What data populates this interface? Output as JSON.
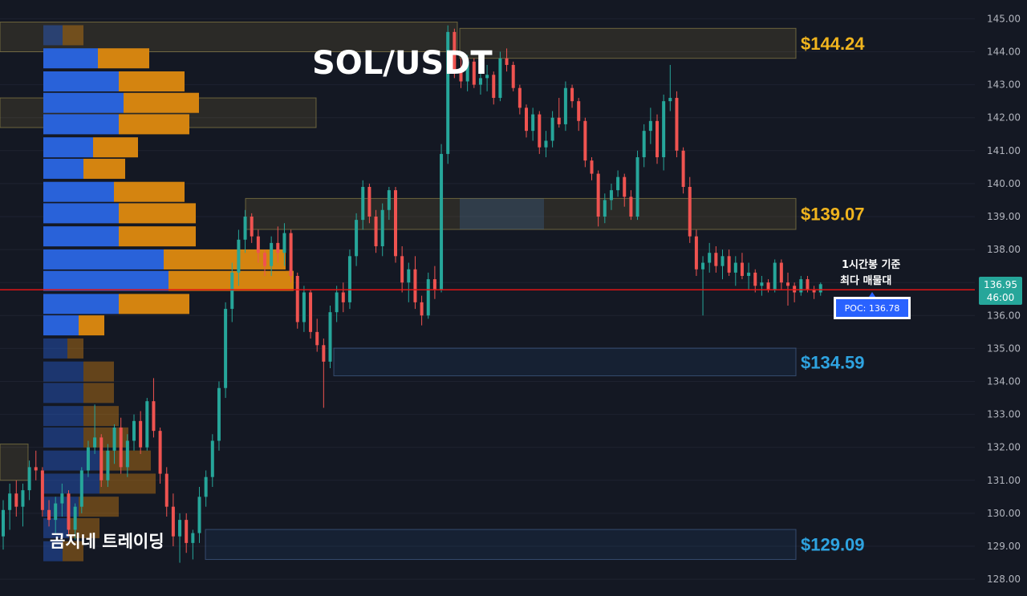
{
  "chart_data": {
    "type": "candlestick",
    "title": "SOL/USDT",
    "brand": "곰지네 트레이딩",
    "y_axis": {
      "ylim": [
        127.6,
        145.4
      ],
      "ticks": [
        "145.00",
        "144.00",
        "143.00",
        "142.00",
        "141.00",
        "140.00",
        "139.00",
        "138.00",
        "137.00",
        "136.00",
        "135.00",
        "134.00",
        "133.00",
        "132.00",
        "131.00",
        "130.00",
        "129.00",
        "128.00"
      ]
    },
    "last_price": {
      "value": "136.95",
      "countdown": "46:00",
      "color": "#26a69a"
    },
    "poc": {
      "label": "POC: 136.78",
      "value": 136.78,
      "line_color": "#e01515",
      "annotation": [
        "1시간봉 기준",
        "최다 매물대"
      ]
    },
    "levels": [
      {
        "label": "$144.24",
        "top": 144.71,
        "bottom": 143.8,
        "color": "#f0b41e"
      },
      {
        "label": "$139.07",
        "top": 139.55,
        "bottom": 138.61,
        "color": "#f0b41e"
      },
      {
        "label": "$134.59",
        "top": 135.01,
        "bottom": 134.17,
        "color": "#2ea3e0"
      },
      {
        "label": "$129.09",
        "top": 129.51,
        "bottom": 128.6,
        "color": "#2ea3e0"
      }
    ],
    "colors": {
      "up": "#26a69a",
      "down": "#ef5350",
      "buy_volume": "#2962d9",
      "sell_volume": "#d48410"
    },
    "volume_profile": [
      {
        "price": 144.5,
        "buy": 12,
        "sell": 13,
        "faded": true
      },
      {
        "price": 143.8,
        "buy": 34,
        "sell": 32
      },
      {
        "price": 143.1,
        "buy": 47,
        "sell": 41
      },
      {
        "price": 142.45,
        "buy": 50,
        "sell": 47
      },
      {
        "price": 141.8,
        "buy": 47,
        "sell": 44
      },
      {
        "price": 141.1,
        "buy": 31,
        "sell": 28
      },
      {
        "price": 140.45,
        "buy": 25,
        "sell": 26
      },
      {
        "price": 139.75,
        "buy": 44,
        "sell": 44
      },
      {
        "price": 139.1,
        "buy": 47,
        "sell": 48
      },
      {
        "price": 138.4,
        "buy": 47,
        "sell": 48
      },
      {
        "price": 137.7,
        "buy": 75,
        "sell": 76
      },
      {
        "price": 137.05,
        "buy": 78,
        "sell": 78
      },
      {
        "price": 136.35,
        "buy": 47,
        "sell": 44
      },
      {
        "price": 135.7,
        "buy": 22,
        "sell": 16
      },
      {
        "price": 135.0,
        "buy": 15,
        "sell": 10,
        "faded": true
      },
      {
        "price": 134.3,
        "buy": 25,
        "sell": 19,
        "faded": true
      },
      {
        "price": 133.65,
        "buy": 25,
        "sell": 19,
        "faded": true
      },
      {
        "price": 132.95,
        "buy": 25,
        "sell": 22,
        "faded": true
      },
      {
        "price": 132.3,
        "buy": 25,
        "sell": 28,
        "faded": true
      },
      {
        "price": 131.6,
        "buy": 35,
        "sell": 32,
        "faded": true
      },
      {
        "price": 130.9,
        "buy": 35,
        "sell": 35,
        "faded": true
      },
      {
        "price": 130.2,
        "buy": 22,
        "sell": 25,
        "faded": true
      },
      {
        "price": 129.55,
        "buy": 16,
        "sell": 19,
        "faded": true
      },
      {
        "price": 128.85,
        "buy": 12,
        "sell": 13,
        "faded": true
      }
    ],
    "ohlc": [
      [
        129.3,
        130.4,
        128.9,
        130.1
      ],
      [
        130.1,
        130.9,
        129.5,
        130.6
      ],
      [
        130.6,
        131.0,
        129.9,
        130.2
      ],
      [
        130.2,
        130.9,
        129.6,
        130.7
      ],
      [
        130.7,
        131.6,
        130.4,
        131.4
      ],
      [
        131.4,
        131.9,
        131.0,
        131.3
      ],
      [
        131.3,
        131.4,
        129.9,
        130.1
      ],
      [
        130.1,
        130.4,
        129.6,
        129.8
      ],
      [
        129.8,
        130.5,
        129.4,
        130.3
      ],
      [
        130.3,
        130.9,
        129.9,
        130.6
      ],
      [
        130.6,
        130.7,
        129.3,
        129.5
      ],
      [
        129.5,
        130.3,
        129.2,
        130.2
      ],
      [
        130.2,
        131.4,
        130.0,
        131.3
      ],
      [
        131.3,
        132.2,
        131.1,
        132.0
      ],
      [
        132.0,
        133.3,
        131.8,
        132.3
      ],
      [
        132.3,
        132.4,
        130.8,
        131.0
      ],
      [
        131.0,
        132.1,
        130.8,
        131.9
      ],
      [
        131.9,
        132.7,
        131.5,
        132.6
      ],
      [
        132.6,
        132.9,
        131.2,
        131.4
      ],
      [
        131.4,
        132.4,
        131.1,
        132.2
      ],
      [
        132.2,
        133.0,
        131.9,
        132.8
      ],
      [
        132.8,
        133.1,
        131.8,
        132.0
      ],
      [
        132.0,
        133.5,
        131.9,
        133.4
      ],
      [
        133.4,
        134.1,
        132.3,
        132.5
      ],
      [
        132.5,
        132.6,
        130.9,
        131.2
      ],
      [
        131.2,
        131.4,
        129.9,
        130.2
      ],
      [
        130.2,
        130.6,
        129.0,
        129.3
      ],
      [
        129.3,
        130.0,
        128.5,
        129.8
      ],
      [
        129.8,
        130.0,
        128.8,
        129.1
      ],
      [
        129.1,
        129.5,
        128.6,
        129.4
      ],
      [
        129.4,
        130.8,
        129.1,
        130.5
      ],
      [
        130.5,
        131.3,
        130.2,
        131.1
      ],
      [
        131.1,
        132.4,
        130.8,
        132.2
      ],
      [
        132.2,
        134.0,
        131.9,
        133.8
      ],
      [
        133.8,
        136.4,
        133.5,
        136.2
      ],
      [
        136.2,
        137.6,
        135.8,
        137.3
      ],
      [
        137.3,
        138.6,
        136.9,
        138.3
      ],
      [
        138.3,
        139.2,
        137.9,
        139.0
      ],
      [
        139.0,
        139.1,
        138.2,
        138.4
      ],
      [
        138.4,
        138.6,
        137.6,
        137.9
      ],
      [
        137.9,
        138.0,
        137.2,
        137.5
      ],
      [
        137.5,
        138.4,
        137.2,
        138.2
      ],
      [
        138.2,
        138.7,
        137.6,
        137.9
      ],
      [
        137.9,
        138.8,
        137.5,
        138.5
      ],
      [
        138.5,
        138.6,
        137.0,
        137.2
      ],
      [
        137.2,
        137.3,
        135.6,
        135.8
      ],
      [
        135.8,
        136.9,
        135.5,
        136.7
      ],
      [
        136.7,
        136.8,
        135.3,
        135.5
      ],
      [
        135.5,
        135.9,
        134.9,
        135.1
      ],
      [
        135.1,
        135.3,
        133.2,
        134.6
      ],
      [
        134.6,
        136.3,
        134.4,
        136.1
      ],
      [
        136.1,
        136.9,
        135.8,
        136.7
      ],
      [
        136.7,
        137.0,
        136.1,
        136.4
      ],
      [
        136.4,
        138.0,
        136.2,
        137.8
      ],
      [
        137.8,
        139.1,
        137.5,
        138.9
      ],
      [
        138.9,
        140.1,
        138.6,
        139.9
      ],
      [
        139.9,
        140.0,
        138.8,
        139.0
      ],
      [
        139.0,
        139.2,
        137.9,
        138.1
      ],
      [
        138.1,
        139.4,
        137.8,
        139.2
      ],
      [
        139.2,
        139.9,
        138.9,
        139.8
      ],
      [
        139.8,
        139.9,
        137.6,
        137.8
      ],
      [
        137.8,
        138.1,
        136.7,
        137.0
      ],
      [
        137.0,
        137.6,
        136.4,
        137.4
      ],
      [
        137.4,
        137.8,
        136.2,
        136.4
      ],
      [
        136.4,
        136.6,
        135.7,
        136.0
      ],
      [
        136.0,
        137.3,
        135.9,
        137.1
      ],
      [
        137.1,
        137.5,
        136.5,
        136.8
      ],
      [
        136.8,
        141.2,
        136.7,
        140.9
      ],
      [
        140.9,
        144.8,
        140.6,
        144.6
      ],
      [
        144.6,
        144.7,
        143.2,
        143.4
      ],
      [
        143.4,
        143.8,
        142.9,
        143.1
      ],
      [
        143.1,
        143.9,
        142.8,
        143.7
      ],
      [
        143.7,
        143.8,
        142.9,
        143.0
      ],
      [
        143.0,
        143.4,
        142.7,
        143.2
      ],
      [
        143.2,
        143.6,
        142.8,
        143.3
      ],
      [
        143.3,
        143.4,
        142.4,
        142.6
      ],
      [
        142.6,
        144.0,
        142.5,
        143.8
      ],
      [
        143.8,
        144.1,
        143.4,
        143.6
      ],
      [
        143.6,
        143.7,
        142.8,
        142.9
      ],
      [
        142.9,
        143.0,
        142.1,
        142.3
      ],
      [
        142.3,
        142.4,
        141.4,
        141.6
      ],
      [
        141.6,
        142.3,
        141.3,
        142.1
      ],
      [
        142.1,
        142.2,
        140.9,
        141.1
      ],
      [
        141.1,
        141.6,
        140.8,
        141.3
      ],
      [
        141.3,
        142.2,
        141.1,
        142.0
      ],
      [
        142.0,
        142.6,
        141.7,
        141.8
      ],
      [
        141.8,
        143.1,
        141.6,
        142.9
      ],
      [
        142.9,
        143.0,
        142.3,
        142.5
      ],
      [
        142.5,
        142.6,
        141.6,
        141.9
      ],
      [
        141.9,
        142.0,
        140.5,
        140.7
      ],
      [
        140.7,
        140.8,
        140.1,
        140.3
      ],
      [
        140.3,
        140.4,
        138.7,
        139.0
      ],
      [
        139.0,
        139.7,
        138.8,
        139.5
      ],
      [
        139.5,
        140.0,
        139.2,
        139.8
      ],
      [
        139.8,
        140.4,
        139.6,
        140.2
      ],
      [
        140.2,
        140.3,
        139.3,
        139.6
      ],
      [
        139.6,
        139.8,
        138.9,
        139.0
      ],
      [
        139.0,
        141.0,
        138.9,
        140.8
      ],
      [
        140.8,
        141.8,
        140.5,
        141.6
      ],
      [
        141.6,
        142.3,
        141.2,
        141.9
      ],
      [
        141.9,
        142.1,
        140.6,
        140.8
      ],
      [
        140.8,
        142.7,
        140.4,
        142.5
      ],
      [
        142.5,
        143.6,
        142.2,
        142.6
      ],
      [
        142.6,
        142.8,
        140.8,
        141.0
      ],
      [
        141.0,
        141.1,
        139.7,
        139.9
      ],
      [
        139.9,
        140.2,
        138.2,
        138.4
      ],
      [
        138.4,
        138.6,
        137.2,
        137.4
      ],
      [
        137.4,
        137.8,
        136.0,
        137.6
      ],
      [
        137.6,
        138.2,
        137.3,
        137.9
      ],
      [
        137.9,
        138.1,
        137.3,
        137.5
      ],
      [
        137.5,
        138.0,
        137.1,
        137.8
      ],
      [
        137.8,
        138.0,
        137.2,
        137.3
      ],
      [
        137.3,
        137.8,
        136.9,
        137.6
      ],
      [
        137.6,
        137.9,
        137.1,
        137.2
      ],
      [
        137.2,
        137.6,
        136.8,
        137.3
      ],
      [
        137.3,
        137.4,
        136.7,
        136.9
      ],
      [
        136.9,
        137.2,
        136.6,
        137.0
      ],
      [
        137.0,
        137.1,
        136.7,
        136.8
      ],
      [
        136.8,
        137.7,
        136.7,
        137.6
      ],
      [
        137.6,
        137.7,
        136.8,
        137.0
      ],
      [
        137.0,
        137.3,
        136.3,
        136.9
      ],
      [
        136.9,
        137.0,
        136.4,
        136.7
      ],
      [
        136.7,
        137.2,
        136.6,
        137.1
      ],
      [
        137.1,
        137.2,
        136.7,
        136.8
      ],
      [
        136.8,
        136.9,
        136.5,
        136.7
      ],
      [
        136.7,
        137.0,
        136.6,
        136.95
      ]
    ]
  }
}
